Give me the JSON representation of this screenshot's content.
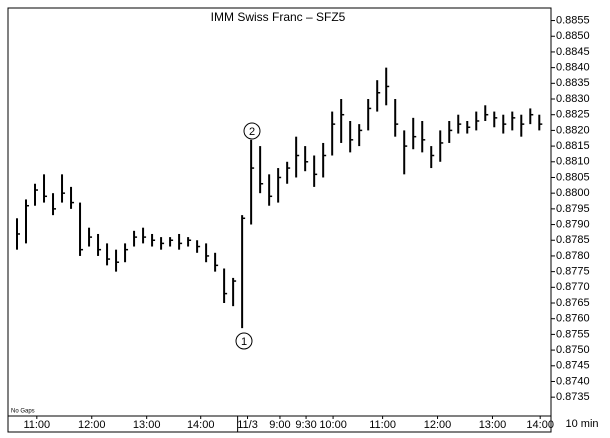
{
  "chart_data": {
    "type": "ohlc",
    "title": "IMM Swiss Franc – SFZ5",
    "high": [
      0.8792,
      0.8798,
      0.8803,
      0.8806,
      0.88,
      0.8806,
      0.8802,
      0.8797,
      0.8789,
      0.8787,
      0.8784,
      0.8782,
      0.8784,
      0.8788,
      0.8789,
      0.8787,
      0.8786,
      0.8786,
      0.8787,
      0.8786,
      0.8785,
      0.8784,
      0.8781,
      0.8776,
      0.8773,
      0.8793,
      0.8817,
      0.8815,
      0.8806,
      0.8808,
      0.881,
      0.8818,
      0.8815,
      0.8812,
      0.8816,
      0.8826,
      0.883,
      0.8823,
      0.8822,
      0.883,
      0.8836,
      0.884,
      0.883,
      0.882,
      0.8824,
      0.8823,
      0.8815,
      0.882,
      0.8823,
      0.8825,
      0.8823,
      0.8826,
      0.8828,
      0.8826,
      0.8825,
      0.8826,
      0.8825,
      0.8827,
      0.8825
    ],
    "low": [
      0.8782,
      0.8784,
      0.8796,
      0.8797,
      0.8793,
      0.8797,
      0.8795,
      0.878,
      0.8783,
      0.878,
      0.8777,
      0.8775,
      0.8778,
      0.8783,
      0.8784,
      0.8783,
      0.8782,
      0.8783,
      0.8782,
      0.8783,
      0.8781,
      0.8778,
      0.8775,
      0.8765,
      0.8764,
      0.8757,
      0.879,
      0.88,
      0.8796,
      0.8797,
      0.8803,
      0.8805,
      0.8807,
      0.8802,
      0.8805,
      0.8812,
      0.8816,
      0.8813,
      0.8815,
      0.882,
      0.8826,
      0.8828,
      0.8818,
      0.8806,
      0.8814,
      0.8813,
      0.8808,
      0.881,
      0.8816,
      0.8819,
      0.8819,
      0.882,
      0.8823,
      0.8821,
      0.8819,
      0.882,
      0.8818,
      0.8822,
      0.882
    ],
    "close": [
      0.8787,
      0.8796,
      0.8801,
      0.8799,
      0.8795,
      0.88,
      0.8797,
      0.8782,
      0.8786,
      0.8782,
      0.8779,
      0.8778,
      0.8782,
      0.8786,
      0.8786,
      0.8785,
      0.8784,
      0.8785,
      0.8784,
      0.8785,
      0.8783,
      0.878,
      0.8777,
      0.8768,
      0.8772,
      0.8792,
      0.8808,
      0.8803,
      0.8799,
      0.8805,
      0.8808,
      0.8812,
      0.881,
      0.8806,
      0.8812,
      0.8822,
      0.8825,
      0.8817,
      0.882,
      0.8827,
      0.8832,
      0.8834,
      0.8822,
      0.8815,
      0.8818,
      0.8817,
      0.8812,
      0.8816,
      0.882,
      0.8822,
      0.8821,
      0.8823,
      0.8825,
      0.8824,
      0.8822,
      0.8824,
      0.8822,
      0.8825,
      0.8822
    ],
    "ylim": [
      0.8729,
      0.8859
    ],
    "yticks": [
      0.8735,
      {
        "value": 0.874,
        "label": "0.8740"
      },
      0.8745,
      {
        "value": 0.875,
        "label": "0.8750"
      },
      0.8755,
      {
        "value": 0.876,
        "label": "0.8760"
      },
      0.8765,
      {
        "value": 0.877,
        "label": "0.8770"
      },
      0.8775,
      {
        "value": 0.878,
        "label": "0.8780"
      },
      0.8785,
      {
        "value": 0.879,
        "label": "0.8790"
      },
      0.8795,
      {
        "value": 0.88,
        "label": "0.8800"
      },
      0.8805,
      {
        "value": 0.881,
        "label": "0.8810"
      },
      0.8815,
      {
        "value": 0.882,
        "label": "0.8820"
      },
      0.8825,
      {
        "value": 0.883,
        "label": "0.8830"
      },
      0.8835,
      {
        "value": 0.884,
        "label": "0.8840"
      },
      0.8845,
      {
        "value": 0.885,
        "label": "0.8850"
      },
      0.8855
    ],
    "xlim": [
      -1,
      59.3
    ],
    "xticks": [
      {
        "value": 2.2,
        "label": "11:00"
      },
      {
        "value": 8.3,
        "label": "12:00"
      },
      {
        "value": 14.4,
        "label": "13:00"
      },
      {
        "value": 20.4,
        "label": "14:00"
      },
      {
        "value": 25.6,
        "label": "11/3"
      },
      {
        "value": 29.2,
        "label": "9:00"
      },
      {
        "value": 32.1,
        "label": "9:30"
      },
      {
        "value": 35.1,
        "label": "10:00"
      },
      {
        "value": 40.6,
        "label": "11:00"
      },
      {
        "value": 46.7,
        "label": "12:00"
      },
      {
        "value": 52.8,
        "label": "13:00"
      },
      {
        "value": 58.1,
        "label": "14:00"
      }
    ],
    "interval_label": "10 min",
    "note": "No Gaps",
    "annotations": [
      "1",
      "2"
    ],
    "color": "#000000"
  }
}
